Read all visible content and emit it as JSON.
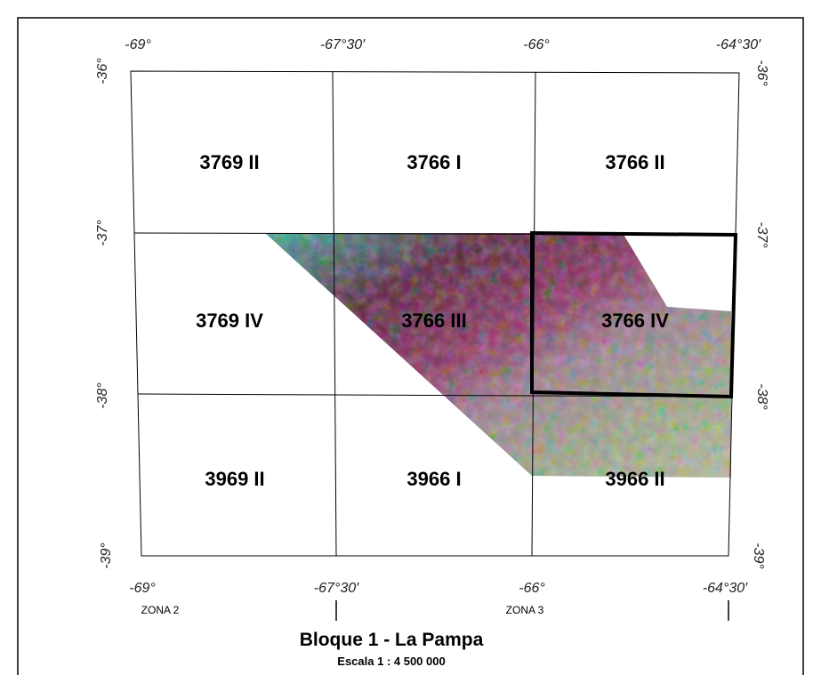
{
  "map": {
    "top_longitudes": [
      "-69°",
      "-67°30′",
      "-66°",
      "-64°30′"
    ],
    "bottom_longitudes": [
      "-69°",
      "-67°30′",
      "-66°",
      "-64°30′"
    ],
    "left_latitudes": [
      "-36°",
      "-37°",
      "-38°",
      "-39°"
    ],
    "right_latitudes": [
      "-36°",
      "-37°",
      "-38°",
      "-39°"
    ],
    "cells": [
      "3769 II",
      "3766 I",
      "3766 II",
      "3769 IV",
      "3766 III",
      "3766 IV",
      "3969 II",
      "3966 I",
      "3966 II"
    ],
    "zones": [
      "ZONA 2",
      "ZONA 3"
    ],
    "title": "Bloque 1 - La Pampa",
    "scale": "Escala 1 : 4 500 000"
  }
}
